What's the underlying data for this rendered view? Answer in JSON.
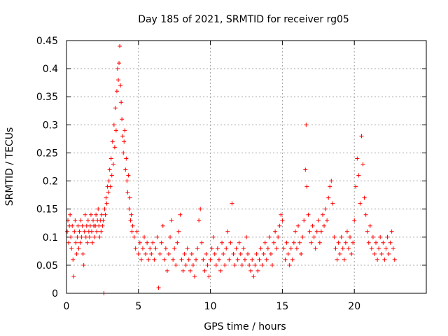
{
  "chart_data": {
    "type": "scatter",
    "title": "Day 185 of 2021, SRMTID for receiver rg05",
    "xlabel": "GPS time / hours",
    "ylabel": "SRMTID / TECUs",
    "xlim": [
      0,
      25
    ],
    "ylim": [
      0,
      0.45
    ],
    "grid": true,
    "marker": "+",
    "color": "#ff0000",
    "x_ticks": [
      0,
      5,
      10,
      15,
      20
    ],
    "x_tick_labels": [
      "0",
      "5",
      "10",
      "15",
      "20"
    ],
    "y_ticks": [
      0,
      0.05,
      0.1,
      0.15,
      0.2,
      0.25,
      0.3,
      0.35,
      0.4,
      0.45
    ],
    "y_tick_labels": [
      "0",
      "0.05",
      "0.1",
      "0.15",
      "0.2",
      "0.25",
      "0.3",
      "0.35",
      "0.4",
      "0.45"
    ],
    "series": [
      {
        "name": "SRMTID",
        "points": [
          [
            0.05,
            0.11
          ],
          [
            0.1,
            0.13
          ],
          [
            0.15,
            0.09
          ],
          [
            0.2,
            0.12
          ],
          [
            0.25,
            0.14
          ],
          [
            0.3,
            0.1
          ],
          [
            0.35,
            0.08
          ],
          [
            0.4,
            0.12
          ],
          [
            0.45,
            0.06
          ],
          [
            0.5,
            0.03
          ],
          [
            0.55,
            0.11
          ],
          [
            0.6,
            0.13
          ],
          [
            0.65,
            0.09
          ],
          [
            0.7,
            0.07
          ],
          [
            0.75,
            0.1
          ],
          [
            0.8,
            0.12
          ],
          [
            0.85,
            0.08
          ],
          [
            0.9,
            0.11
          ],
          [
            0.95,
            0.09
          ],
          [
            1.0,
            0.13
          ],
          [
            1.05,
            0.1
          ],
          [
            1.1,
            0.12
          ],
          [
            1.15,
            0.07
          ],
          [
            1.2,
            0.05
          ],
          [
            1.25,
            0.11
          ],
          [
            1.3,
            0.14
          ],
          [
            1.35,
            0.1
          ],
          [
            1.4,
            0.12
          ],
          [
            1.45,
            0.09
          ],
          [
            1.5,
            0.13
          ],
          [
            1.55,
            0.11
          ],
          [
            1.6,
            0.1
          ],
          [
            1.65,
            0.12
          ],
          [
            1.7,
            0.14
          ],
          [
            1.75,
            0.11
          ],
          [
            1.8,
            0.09
          ],
          [
            1.85,
            0.13
          ],
          [
            1.9,
            0.12
          ],
          [
            1.95,
            0.1
          ],
          [
            2.0,
            0.12
          ],
          [
            2.05,
            0.14
          ],
          [
            2.1,
            0.11
          ],
          [
            2.15,
            0.13
          ],
          [
            2.2,
            0.15
          ],
          [
            2.25,
            0.12
          ],
          [
            2.3,
            0.1
          ],
          [
            2.35,
            0.13
          ],
          [
            2.4,
            0.11
          ],
          [
            2.45,
            0.14
          ],
          [
            2.5,
            0.12
          ],
          [
            2.55,
            0.13
          ],
          [
            2.6,
            0.0
          ],
          [
            2.65,
            0.15
          ],
          [
            2.7,
            0.14
          ],
          [
            2.75,
            0.17
          ],
          [
            2.8,
            0.16
          ],
          [
            2.85,
            0.19
          ],
          [
            2.9,
            0.18
          ],
          [
            2.95,
            0.2
          ],
          [
            3.0,
            0.22
          ],
          [
            3.05,
            0.19
          ],
          [
            3.1,
            0.24
          ],
          [
            3.15,
            0.21
          ],
          [
            3.2,
            0.27
          ],
          [
            3.25,
            0.23
          ],
          [
            3.3,
            0.3
          ],
          [
            3.35,
            0.26
          ],
          [
            3.4,
            0.33
          ],
          [
            3.45,
            0.29
          ],
          [
            3.5,
            0.36
          ],
          [
            3.55,
            0.4
          ],
          [
            3.6,
            0.38
          ],
          [
            3.65,
            0.41
          ],
          [
            3.7,
            0.44
          ],
          [
            3.75,
            0.37
          ],
          [
            3.8,
            0.34
          ],
          [
            3.85,
            0.31
          ],
          [
            3.9,
            0.28
          ],
          [
            3.95,
            0.25
          ],
          [
            4.0,
            0.27
          ],
          [
            4.05,
            0.29
          ],
          [
            4.1,
            0.22
          ],
          [
            4.15,
            0.24
          ],
          [
            4.2,
            0.2
          ],
          [
            4.25,
            0.18
          ],
          [
            4.3,
            0.21
          ],
          [
            4.35,
            0.15
          ],
          [
            4.4,
            0.17
          ],
          [
            4.45,
            0.13
          ],
          [
            4.5,
            0.14
          ],
          [
            4.55,
            0.11
          ],
          [
            4.6,
            0.12
          ],
          [
            4.7,
            0.1
          ],
          [
            4.8,
            0.08
          ],
          [
            4.9,
            0.11
          ],
          [
            5.0,
            0.07
          ],
          [
            5.1,
            0.09
          ],
          [
            5.2,
            0.06
          ],
          [
            5.3,
            0.08
          ],
          [
            5.4,
            0.1
          ],
          [
            5.5,
            0.07
          ],
          [
            5.6,
            0.09
          ],
          [
            5.7,
            0.06
          ],
          [
            5.8,
            0.08
          ],
          [
            5.9,
            0.07
          ],
          [
            6.0,
            0.09
          ],
          [
            6.1,
            0.06
          ],
          [
            6.2,
            0.08
          ],
          [
            6.3,
            0.1
          ],
          [
            6.4,
            0.01
          ],
          [
            6.5,
            0.07
          ],
          [
            6.6,
            0.09
          ],
          [
            6.7,
            0.12
          ],
          [
            6.8,
            0.06
          ],
          [
            6.9,
            0.08
          ],
          [
            7.0,
            0.04
          ],
          [
            7.1,
            0.07
          ],
          [
            7.2,
            0.1
          ],
          [
            7.3,
            0.13
          ],
          [
            7.4,
            0.06
          ],
          [
            7.5,
            0.08
          ],
          [
            7.6,
            0.05
          ],
          [
            7.7,
            0.09
          ],
          [
            7.8,
            0.11
          ],
          [
            7.9,
            0.14
          ],
          [
            8.0,
            0.06
          ],
          [
            8.1,
            0.04
          ],
          [
            8.2,
            0.07
          ],
          [
            8.3,
            0.05
          ],
          [
            8.4,
            0.08
          ],
          [
            8.5,
            0.06
          ],
          [
            8.6,
            0.04
          ],
          [
            8.7,
            0.07
          ],
          [
            8.8,
            0.05
          ],
          [
            8.9,
            0.03
          ],
          [
            9.0,
            0.06
          ],
          [
            9.1,
            0.08
          ],
          [
            9.2,
            0.13
          ],
          [
            9.3,
            0.15
          ],
          [
            9.4,
            0.09
          ],
          [
            9.5,
            0.06
          ],
          [
            9.6,
            0.04
          ],
          [
            9.7,
            0.07
          ],
          [
            9.8,
            0.05
          ],
          [
            9.9,
            0.03
          ],
          [
            10.0,
            0.06
          ],
          [
            10.1,
            0.08
          ],
          [
            10.2,
            0.1
          ],
          [
            10.3,
            0.07
          ],
          [
            10.4,
            0.05
          ],
          [
            10.5,
            0.08
          ],
          [
            10.6,
            0.06
          ],
          [
            10.7,
            0.04
          ],
          [
            10.8,
            0.09
          ],
          [
            10.9,
            0.07
          ],
          [
            11.0,
            0.05
          ],
          [
            11.1,
            0.08
          ],
          [
            11.2,
            0.11
          ],
          [
            11.3,
            0.06
          ],
          [
            11.4,
            0.09
          ],
          [
            11.5,
            0.16
          ],
          [
            11.6,
            0.07
          ],
          [
            11.7,
            0.05
          ],
          [
            11.8,
            0.08
          ],
          [
            11.9,
            0.06
          ],
          [
            12.0,
            0.09
          ],
          [
            12.1,
            0.07
          ],
          [
            12.2,
            0.05
          ],
          [
            12.3,
            0.08
          ],
          [
            12.4,
            0.06
          ],
          [
            12.5,
            0.1
          ],
          [
            12.6,
            0.07
          ],
          [
            12.7,
            0.05
          ],
          [
            12.8,
            0.04
          ],
          [
            12.9,
            0.06
          ],
          [
            13.0,
            0.03
          ],
          [
            13.1,
            0.05
          ],
          [
            13.2,
            0.07
          ],
          [
            13.3,
            0.04
          ],
          [
            13.4,
            0.06
          ],
          [
            13.5,
            0.08
          ],
          [
            13.6,
            0.05
          ],
          [
            13.7,
            0.07
          ],
          [
            13.8,
            0.09
          ],
          [
            13.9,
            0.06
          ],
          [
            14.0,
            0.08
          ],
          [
            14.1,
            0.1
          ],
          [
            14.2,
            0.07
          ],
          [
            14.3,
            0.05
          ],
          [
            14.4,
            0.09
          ],
          [
            14.5,
            0.11
          ],
          [
            14.6,
            0.08
          ],
          [
            14.7,
            0.1
          ],
          [
            14.8,
            0.12
          ],
          [
            14.9,
            0.14
          ],
          [
            15.0,
            0.13
          ],
          [
            15.1,
            0.08
          ],
          [
            15.2,
            0.06
          ],
          [
            15.3,
            0.09
          ],
          [
            15.4,
            0.07
          ],
          [
            15.5,
            0.05
          ],
          [
            15.6,
            0.08
          ],
          [
            15.7,
            0.06
          ],
          [
            15.8,
            0.09
          ],
          [
            15.9,
            0.11
          ],
          [
            16.0,
            0.08
          ],
          [
            16.1,
            0.12
          ],
          [
            16.2,
            0.09
          ],
          [
            16.3,
            0.07
          ],
          [
            16.4,
            0.1
          ],
          [
            16.5,
            0.13
          ],
          [
            16.6,
            0.22
          ],
          [
            16.65,
            0.3
          ],
          [
            16.7,
            0.19
          ],
          [
            16.8,
            0.14
          ],
          [
            16.9,
            0.11
          ],
          [
            17.0,
            0.09
          ],
          [
            17.1,
            0.12
          ],
          [
            17.2,
            0.1
          ],
          [
            17.3,
            0.08
          ],
          [
            17.4,
            0.11
          ],
          [
            17.5,
            0.13
          ],
          [
            17.6,
            0.09
          ],
          [
            17.7,
            0.11
          ],
          [
            17.8,
            0.14
          ],
          [
            17.9,
            0.12
          ],
          [
            18.0,
            0.15
          ],
          [
            18.1,
            0.13
          ],
          [
            18.2,
            0.17
          ],
          [
            18.3,
            0.19
          ],
          [
            18.4,
            0.2
          ],
          [
            18.5,
            0.16
          ],
          [
            18.6,
            0.1
          ],
          [
            18.7,
            0.08
          ],
          [
            18.8,
            0.06
          ],
          [
            18.9,
            0.09
          ],
          [
            19.0,
            0.07
          ],
          [
            19.1,
            0.1
          ],
          [
            19.2,
            0.08
          ],
          [
            19.3,
            0.06
          ],
          [
            19.4,
            0.09
          ],
          [
            19.5,
            0.11
          ],
          [
            19.6,
            0.08
          ],
          [
            19.7,
            0.1
          ],
          [
            19.8,
            0.07
          ],
          [
            19.9,
            0.09
          ],
          [
            20.0,
            0.13
          ],
          [
            20.1,
            0.19
          ],
          [
            20.2,
            0.24
          ],
          [
            20.3,
            0.21
          ],
          [
            20.4,
            0.16
          ],
          [
            20.5,
            0.28
          ],
          [
            20.6,
            0.23
          ],
          [
            20.7,
            0.17
          ],
          [
            20.8,
            0.14
          ],
          [
            20.9,
            0.11
          ],
          [
            21.0,
            0.09
          ],
          [
            21.1,
            0.12
          ],
          [
            21.2,
            0.08
          ],
          [
            21.3,
            0.1
          ],
          [
            21.4,
            0.07
          ],
          [
            21.5,
            0.09
          ],
          [
            21.6,
            0.06
          ],
          [
            21.7,
            0.08
          ],
          [
            21.8,
            0.1
          ],
          [
            21.9,
            0.07
          ],
          [
            22.0,
            0.09
          ],
          [
            22.1,
            0.06
          ],
          [
            22.2,
            0.08
          ],
          [
            22.3,
            0.1
          ],
          [
            22.4,
            0.07
          ],
          [
            22.5,
            0.09
          ],
          [
            22.6,
            0.11
          ],
          [
            22.7,
            0.08
          ],
          [
            22.8,
            0.06
          ]
        ]
      }
    ]
  }
}
